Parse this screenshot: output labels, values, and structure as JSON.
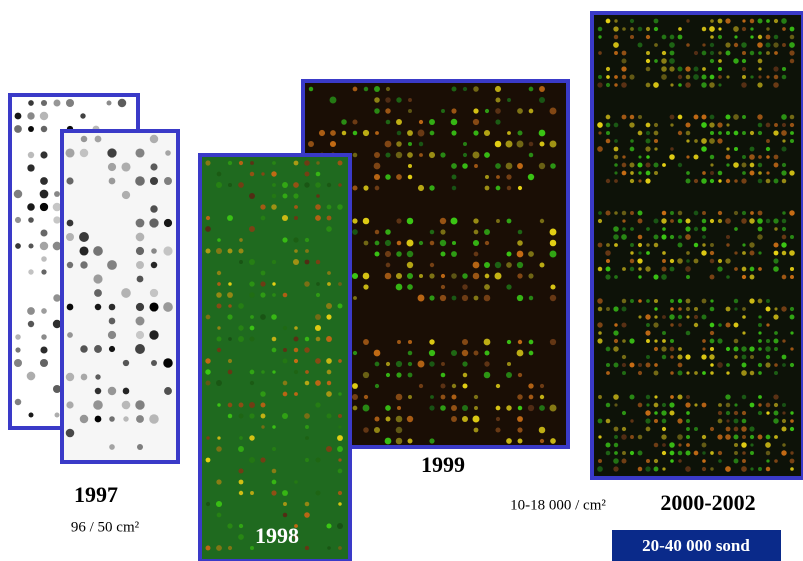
{
  "panels": [
    {
      "year": "1997",
      "density": "96 / 50 cm²"
    },
    {
      "year": "1998"
    },
    {
      "year": "1999",
      "density": "10-18 000 / cm²"
    },
    {
      "year": "2000-2002",
      "density": "20-40 000 sond"
    }
  ]
}
